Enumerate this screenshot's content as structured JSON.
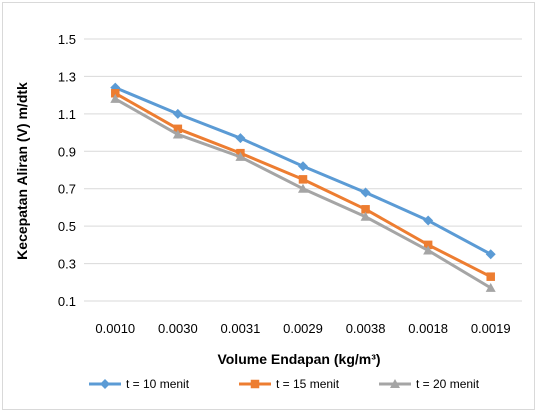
{
  "chart_data": {
    "type": "line",
    "title": "",
    "xlabel": "Volume Endapan (kg/m³)",
    "ylabel": "Kecepatan Aliran (V) m/dtk",
    "categories": [
      "0.0010",
      "0.0030",
      "0.0031",
      "0.0029",
      "0.0038",
      "0.0018",
      "0.0019"
    ],
    "ylim": [
      0.1,
      1.5
    ],
    "yticks": [
      "0.1",
      "0.3",
      "0.5",
      "0.7",
      "0.9",
      "1.1",
      "1.3",
      "1.5"
    ],
    "grid": true,
    "legend_position": "bottom",
    "series": [
      {
        "name": "t = 10 menit",
        "color": "#5b9bd5",
        "marker": "diamond",
        "values": [
          1.24,
          1.1,
          0.97,
          0.82,
          0.68,
          0.53,
          0.35
        ]
      },
      {
        "name": "t = 15 menit",
        "color": "#ed7d31",
        "marker": "square",
        "values": [
          1.21,
          1.02,
          0.89,
          0.75,
          0.59,
          0.4,
          0.23
        ]
      },
      {
        "name": "t = 20 menit",
        "color": "#a5a5a5",
        "marker": "triangle",
        "values": [
          1.18,
          0.99,
          0.87,
          0.7,
          0.55,
          0.37,
          0.17
        ]
      }
    ]
  }
}
